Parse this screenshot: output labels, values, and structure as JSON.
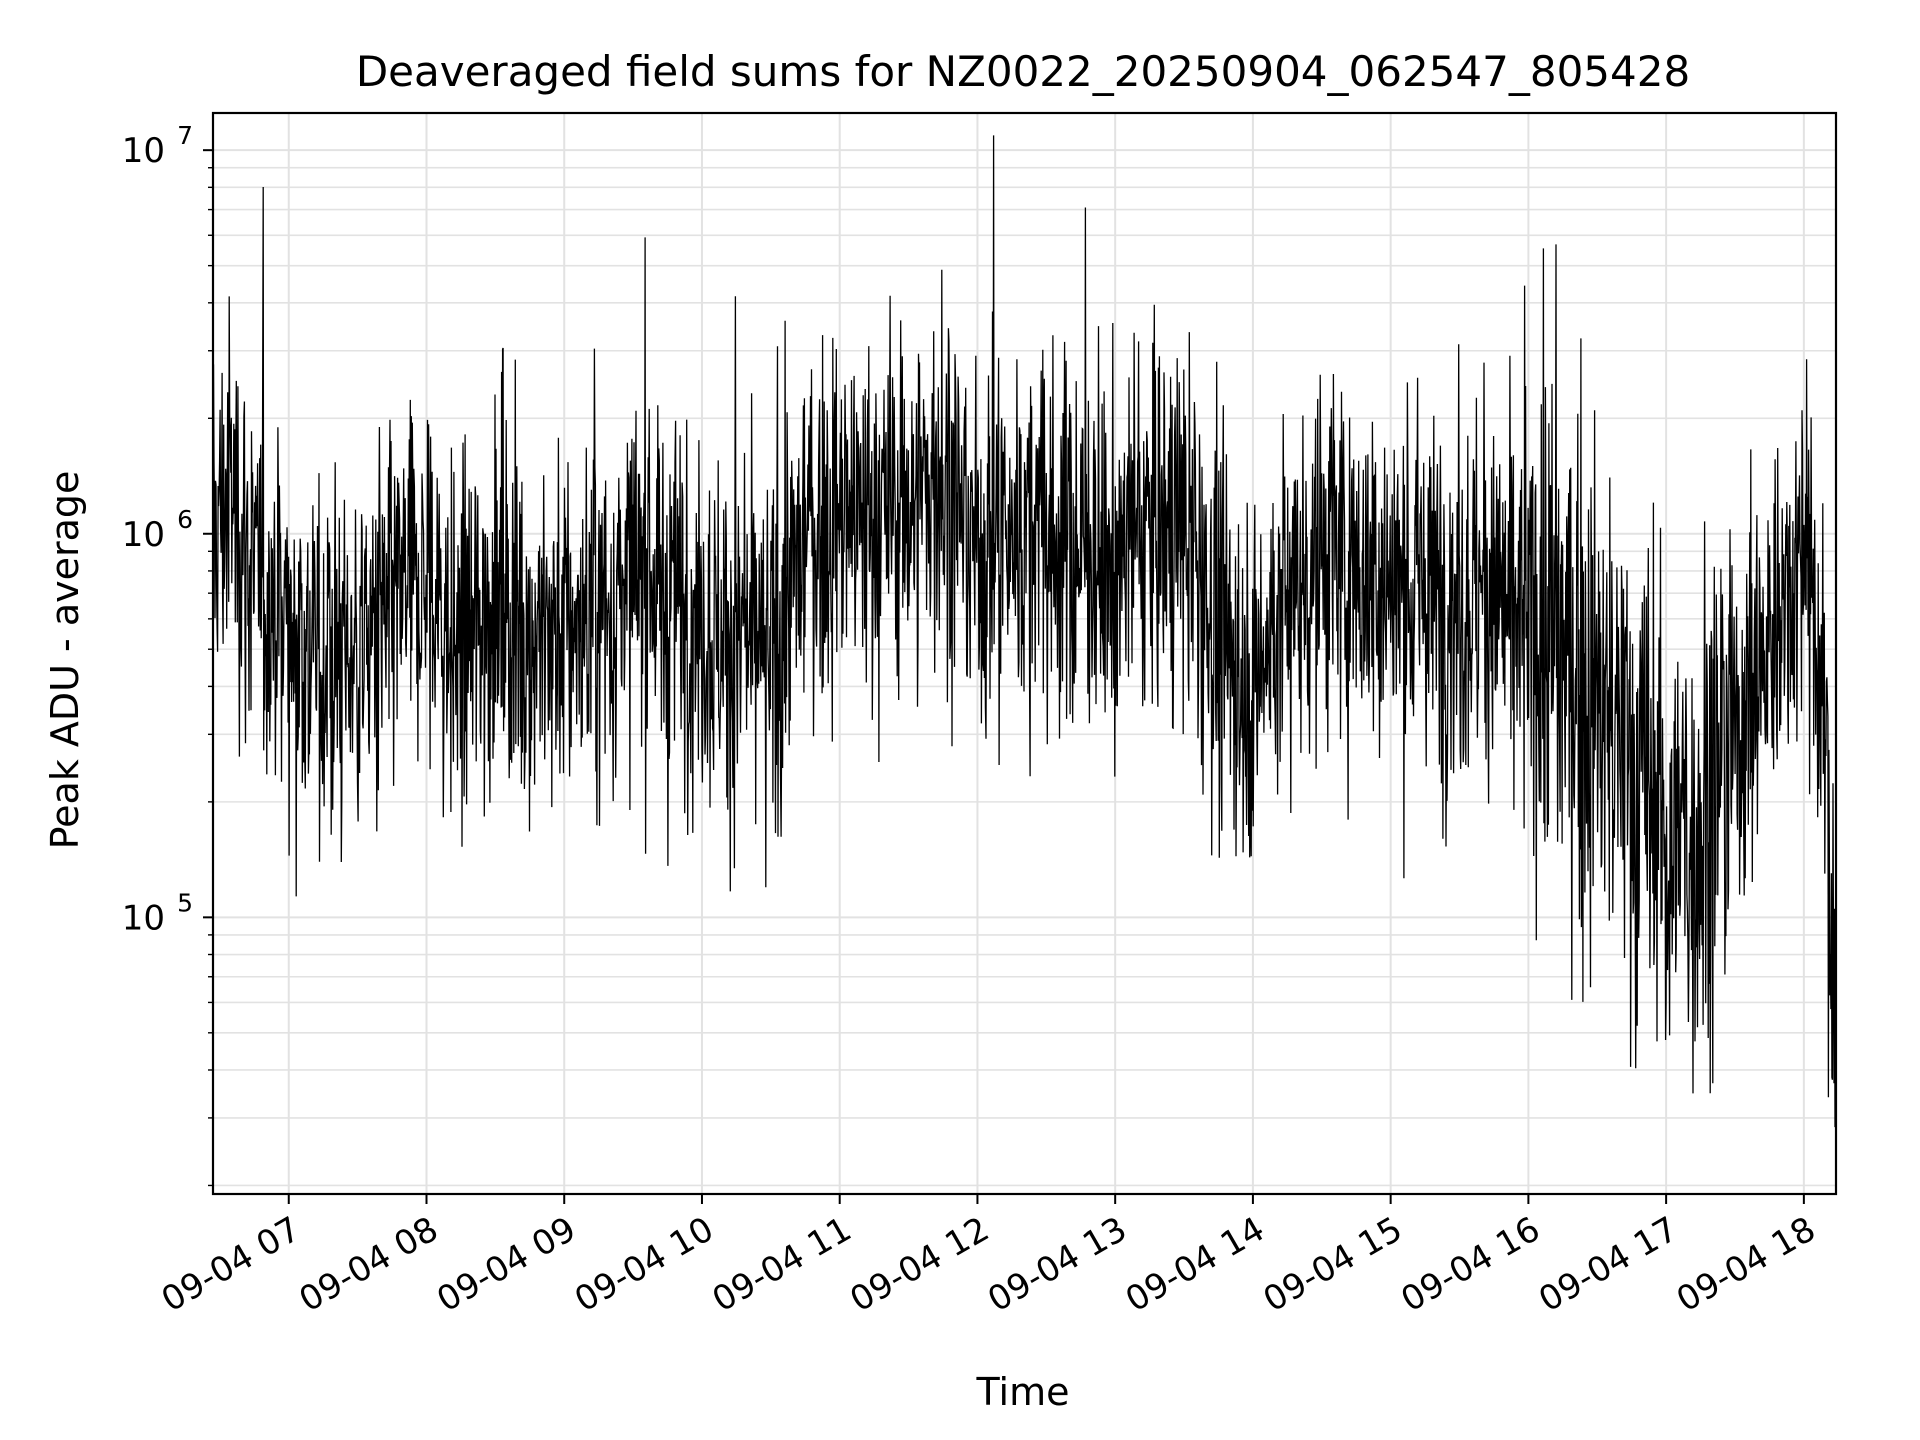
{
  "chart_data": {
    "type": "line",
    "title": "Deaveraged field sums for NZ0022_20250904_062547_805428",
    "xlabel": "Time",
    "ylabel": "Peak ADU - average",
    "yscale": "log",
    "ylim": [
      19000,
      12500000
    ],
    "xlim": [
      "2025-09-04 06:27",
      "2025-09-04 18:14"
    ],
    "grid": true,
    "line_color": "#000000",
    "x_ticks": [
      "09-04 07",
      "09-04 08",
      "09-04 09",
      "09-04 10",
      "09-04 11",
      "09-04 12",
      "09-04 13",
      "09-04 14",
      "09-04 15",
      "09-04 16",
      "09-04 17",
      "09-04 18"
    ],
    "y_ticks": [
      {
        "base": "10",
        "exp": "5",
        "value": 100000
      },
      {
        "base": "10",
        "exp": "6",
        "value": 1000000
      },
      {
        "base": "10",
        "exp": "7",
        "value": 10000000
      }
    ],
    "series": [
      {
        "x": [
          "06:27",
          "06:35",
          "06:45",
          "07:00",
          "07:15",
          "07:30",
          "07:45",
          "08:00",
          "08:15",
          "08:30",
          "08:45",
          "09:00",
          "09:15",
          "09:30",
          "09:45",
          "10:00",
          "10:15",
          "10:30",
          "10:45",
          "11:00",
          "11:15",
          "11:30",
          "11:45",
          "12:00",
          "12:15",
          "12:30",
          "12:45",
          "13:00",
          "13:15",
          "13:30",
          "13:45",
          "14:00",
          "14:15",
          "14:30",
          "14:45",
          "15:00",
          "15:15",
          "15:30",
          "15:45",
          "16:00",
          "16:15",
          "16:30",
          "16:45",
          "17:00",
          "17:15",
          "17:30",
          "17:45",
          "18:00",
          "18:10",
          "18:14"
        ],
        "values": [
          1000000,
          1300000,
          750000,
          600000,
          450000,
          500000,
          600000,
          750000,
          450000,
          700000,
          550000,
          550000,
          600000,
          750000,
          700000,
          600000,
          500000,
          450000,
          1000000,
          1100000,
          1100000,
          1200000,
          1400000,
          900000,
          1000000,
          1000000,
          900000,
          800000,
          1100000,
          1000000,
          550000,
          400000,
          700000,
          900000,
          800000,
          750000,
          700000,
          650000,
          700000,
          550000,
          500000,
          350000,
          250000,
          150000,
          180000,
          300000,
          500000,
          1000000,
          250000,
          35000
        ]
      }
    ]
  }
}
